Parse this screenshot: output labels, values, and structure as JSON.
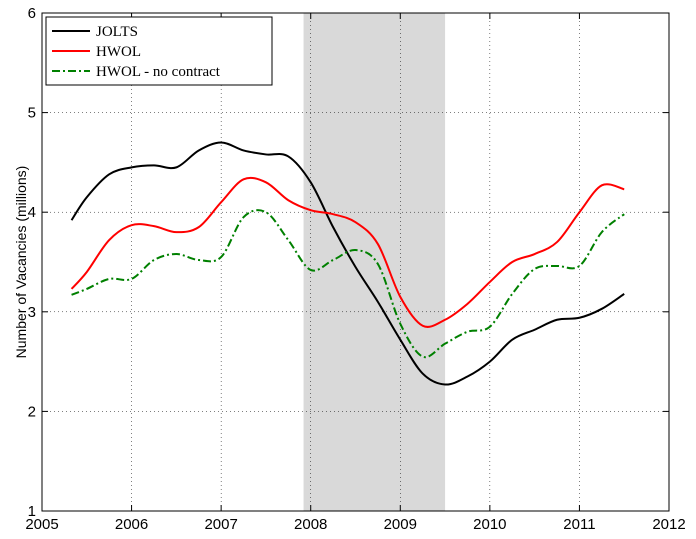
{
  "chart_data": {
    "type": "line",
    "y_label": "Number of Vacancies (millions)",
    "xlim": [
      2005,
      2012
    ],
    "xticks": [
      2005,
      2006,
      2007,
      2008,
      2009,
      2010,
      2011,
      2012
    ],
    "ylim": [
      1,
      6
    ],
    "yticks": [
      1,
      2,
      3,
      4,
      5,
      6
    ],
    "grid": true,
    "legend": "upper left",
    "shaded_region": {
      "x": [
        2007.92,
        2009.5
      ],
      "color": "#d9d9d9"
    },
    "x": [
      2005.33,
      2005.5,
      2005.75,
      2006,
      2006.25,
      2006.5,
      2006.75,
      2007,
      2007.25,
      2007.5,
      2007.75,
      2008,
      2008.25,
      2008.5,
      2008.75,
      2009,
      2009.25,
      2009.5,
      2009.75,
      2010,
      2010.25,
      2010.5,
      2010.75,
      2011,
      2011.25,
      2011.5
    ],
    "series": [
      {
        "name": "JOLTS",
        "color": "#000000",
        "dash": "solid",
        "values": [
          3.92,
          4.15,
          4.38,
          4.45,
          4.47,
          4.45,
          4.62,
          4.7,
          4.62,
          4.58,
          4.56,
          4.3,
          3.85,
          3.45,
          3.1,
          2.72,
          2.38,
          2.27,
          2.35,
          2.5,
          2.72,
          2.82,
          2.92,
          2.94,
          3.03,
          3.18
        ]
      },
      {
        "name": "HWOL",
        "color": "#ff0000",
        "dash": "solid",
        "values": [
          3.23,
          3.4,
          3.72,
          3.87,
          3.86,
          3.8,
          3.85,
          4.1,
          4.33,
          4.3,
          4.12,
          4.02,
          3.98,
          3.9,
          3.68,
          3.15,
          2.86,
          2.92,
          3.08,
          3.3,
          3.5,
          3.58,
          3.7,
          4.0,
          4.27,
          4.23
        ]
      },
      {
        "name": "HWOL - no contract",
        "color": "#008000",
        "dash": "dashdot",
        "values": [
          3.17,
          3.23,
          3.33,
          3.33,
          3.52,
          3.58,
          3.52,
          3.55,
          3.95,
          4.0,
          3.72,
          3.42,
          3.52,
          3.62,
          3.48,
          2.88,
          2.55,
          2.68,
          2.8,
          2.85,
          3.18,
          3.43,
          3.46,
          3.46,
          3.8,
          3.98
        ]
      }
    ]
  }
}
